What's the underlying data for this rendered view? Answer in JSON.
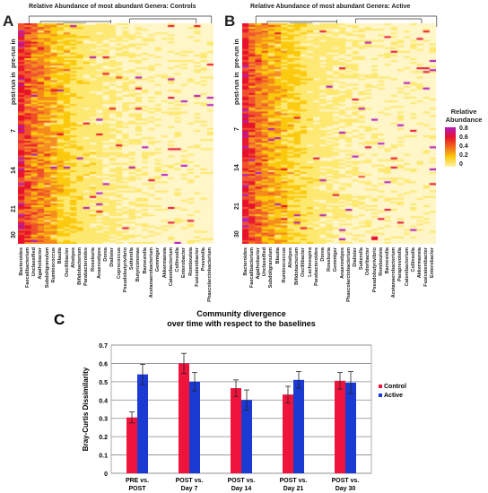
{
  "panels": {
    "A": {
      "letter": "A",
      "title": "Relative Abundance of most abundant Genera: Controls",
      "row_labels": [
        "pre-run in",
        "post-run in",
        "7",
        "14",
        "21",
        "30"
      ],
      "genera": [
        "Bacteroides",
        "Faecalibacterium",
        "Unclassified",
        "Agathobacter",
        "Subdoligranulum",
        "Ruminococcus",
        "Blautia",
        "Oscillibacter",
        "Alistipes",
        "Bifidobacterium",
        "Parabacteroides",
        "Roseburia",
        "Anaerostipes",
        "Dorea",
        "Dialister",
        "Coprococcus",
        "Pseudobutyrivibrio",
        "Sutterella",
        "Butyricimonas",
        "Barnesiella",
        "Acetanaerobacterium",
        "Gemmiger",
        "Akkermansia",
        "Catenibacterium",
        "Collinsella",
        "Enterobacter",
        "Romboutsia",
        "Fusicatenibacter",
        "Prevotella",
        "Phascolarctobacterium"
      ]
    },
    "B": {
      "letter": "B",
      "title": "Relative Abundance of most abundant Genera: Active",
      "row_labels": [
        "pre-run in",
        "post-run in",
        "7",
        "14",
        "21",
        "30"
      ],
      "genera": [
        "Bacteroides",
        "Faecalibacterium",
        "Agathobacter",
        "Unclassified",
        "Subdoligranulum",
        "Blautia",
        "Ruminococcus",
        "Alistipes",
        "Bifidobacterium",
        "Oscillibacter",
        "Lachnospira",
        "Parabacteroides",
        "Dorea",
        "Roseburia",
        "Gemmiger",
        "Anaerostipes",
        "Phascolarctobacterium",
        "Dialister",
        "Sutterella",
        "Odoribacter",
        "Pseudobutyrivibrio",
        "Romboutsia",
        "Barnesiella",
        "Acetanaerobacterium",
        "Paraprevotella",
        "Catenibacterium",
        "Collinsella",
        "Akkermansia",
        "Fusicatenibacter",
        "Enterobacter"
      ]
    }
  },
  "legend": {
    "title": "Relative Abundance",
    "ticks": [
      "0.8",
      "0.6",
      "0.4",
      "0.2",
      "0"
    ],
    "colors": [
      "#b21bbf",
      "#e8122a",
      "#f26a1b",
      "#fbc90d",
      "#fff2a8"
    ]
  },
  "chart_data": {
    "type": "bar",
    "panel_letter": "C",
    "title": "Community divergence over time with respect to the baselines",
    "title_lines": [
      "Community divergence",
      "over time with respect to the baselines"
    ],
    "xlabel": "",
    "ylabel": "Bray-Curtis Dissimilarity",
    "ylim": [
      0,
      0.7
    ],
    "yticks": [
      0,
      0.1,
      0.2,
      0.3,
      0.4,
      0.5,
      0.6,
      0.7
    ],
    "grid": true,
    "legend_position": "right",
    "categories": [
      [
        "PRE vs.",
        "POST"
      ],
      [
        "POST vs.",
        "Day 7"
      ],
      [
        "POST vs.",
        "Day 14"
      ],
      [
        "POST vs.",
        "Day 21"
      ],
      [
        "POST vs.",
        "Day 30"
      ]
    ],
    "series": [
      {
        "name": "Control",
        "color": "#f0143c",
        "values": [
          0.305,
          0.6,
          0.465,
          0.43,
          0.505
        ],
        "errors": [
          0.03,
          0.055,
          0.045,
          0.045,
          0.045
        ]
      },
      {
        "name": "Active",
        "color": "#1a3ad1",
        "values": [
          0.54,
          0.5,
          0.4,
          0.51,
          0.495
        ],
        "errors": [
          0.055,
          0.05,
          0.055,
          0.045,
          0.06
        ]
      }
    ]
  }
}
